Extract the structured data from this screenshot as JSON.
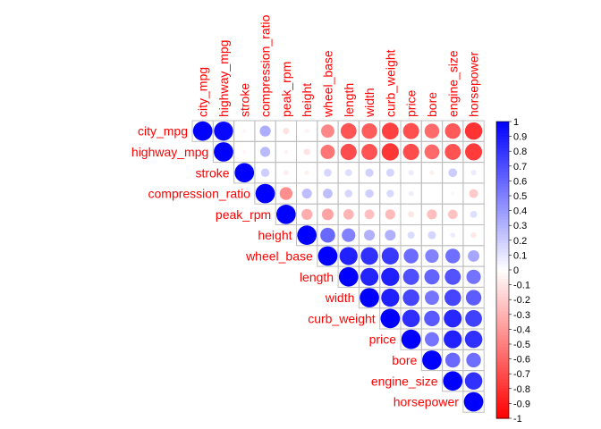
{
  "chart_data": {
    "type": "heatmap",
    "title": "",
    "variables": [
      "city_mpg",
      "highway_mpg",
      "stroke",
      "compression_ratio",
      "peak_rpm",
      "height",
      "wheel_base",
      "length",
      "width",
      "curb_weight",
      "price",
      "bore",
      "engine_size",
      "horsepower"
    ],
    "column_labels": [
      "city_mpg",
      "highway_mpg",
      "stroke",
      "compression_ratio",
      "peak_rpm",
      "height",
      "wheel_base",
      "length",
      "width",
      "curb_weight",
      "price",
      "bore",
      "engine_size",
      "horsepower"
    ],
    "matrix": [
      [
        1.0,
        0.97,
        -0.04,
        0.32,
        -0.11,
        -0.05,
        -0.47,
        -0.67,
        -0.64,
        -0.75,
        -0.69,
        -0.58,
        -0.65,
        -0.8
      ],
      [
        0.97,
        1.0,
        -0.04,
        0.27,
        -0.05,
        -0.11,
        -0.54,
        -0.7,
        -0.68,
        -0.79,
        -0.7,
        -0.59,
        -0.68,
        -0.77
      ],
      [
        -0.04,
        -0.04,
        1.0,
        0.19,
        -0.07,
        -0.06,
        0.16,
        0.13,
        0.18,
        0.17,
        0.08,
        -0.06,
        0.2,
        0.08
      ],
      [
        0.32,
        0.27,
        0.19,
        1.0,
        -0.44,
        0.26,
        0.25,
        0.16,
        0.19,
        0.15,
        0.07,
        0.01,
        0.03,
        -0.21
      ],
      [
        -0.11,
        -0.05,
        -0.07,
        -0.44,
        1.0,
        -0.32,
        -0.36,
        -0.29,
        -0.25,
        -0.27,
        -0.1,
        -0.26,
        -0.24,
        0.13
      ],
      [
        -0.05,
        -0.11,
        -0.06,
        0.26,
        -0.32,
        1.0,
        0.59,
        0.49,
        0.31,
        0.31,
        0.14,
        0.17,
        0.07,
        -0.09
      ],
      [
        -0.47,
        -0.54,
        0.16,
        0.25,
        -0.36,
        0.59,
        1.0,
        0.87,
        0.81,
        0.78,
        0.58,
        0.49,
        0.57,
        0.35
      ],
      [
        -0.67,
        -0.7,
        0.13,
        0.16,
        -0.29,
        0.49,
        0.87,
        1.0,
        0.86,
        0.88,
        0.69,
        0.61,
        0.68,
        0.55
      ],
      [
        -0.64,
        -0.68,
        0.18,
        0.19,
        -0.25,
        0.31,
        0.81,
        0.86,
        1.0,
        0.87,
        0.73,
        0.54,
        0.73,
        0.64
      ],
      [
        -0.75,
        -0.79,
        0.17,
        0.15,
        -0.27,
        0.31,
        0.78,
        0.88,
        0.87,
        1.0,
        0.82,
        0.65,
        0.85,
        0.75
      ],
      [
        -0.69,
        -0.7,
        0.08,
        0.07,
        -0.1,
        0.14,
        0.58,
        0.69,
        0.73,
        0.82,
        1.0,
        0.54,
        0.87,
        0.81
      ],
      [
        -0.58,
        -0.59,
        -0.06,
        0.01,
        -0.26,
        0.17,
        0.49,
        0.61,
        0.54,
        0.65,
        0.54,
        1.0,
        0.59,
        0.57
      ],
      [
        -0.65,
        -0.68,
        0.2,
        0.03,
        -0.24,
        0.07,
        0.57,
        0.68,
        0.73,
        0.85,
        0.87,
        0.59,
        1.0,
        0.81
      ],
      [
        -0.8,
        -0.77,
        0.08,
        -0.21,
        0.13,
        -0.09,
        0.35,
        0.55,
        0.64,
        0.75,
        0.81,
        0.57,
        0.81,
        1.0
      ]
    ],
    "display": "upper-triangle circles",
    "color_scale": {
      "negative": "#ff0000",
      "zero": "#ffffff",
      "positive": "#0000ff",
      "range": [
        -1,
        1
      ]
    },
    "colorbar_ticks": [
      "1",
      "0.9",
      "0.8",
      "0.7",
      "0.6",
      "0.5",
      "0.4",
      "0.3",
      "0.2",
      "0.1",
      "0",
      "-0.1",
      "-0.2",
      "-0.3",
      "-0.4",
      "-0.5",
      "-0.6",
      "-0.7",
      "-0.8",
      "-0.9",
      "-1"
    ],
    "label_color": "#ff0000",
    "grid_color": "#bebebe",
    "legend_position": "right"
  }
}
